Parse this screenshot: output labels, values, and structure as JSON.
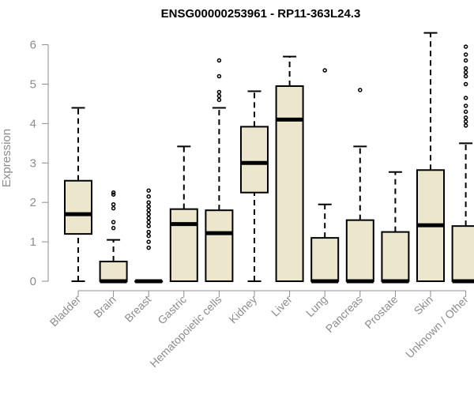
{
  "chart_data": {
    "type": "boxplot",
    "title": "ENSG00000253961 - RP11-363L24.3",
    "xlabel": "",
    "ylabel": "Expression",
    "ylim": [
      0,
      6.3
    ],
    "yticks": [
      0,
      1,
      2,
      3,
      4,
      5,
      6
    ],
    "box_color": "#ece6cc",
    "categories": [
      "Bladder",
      "Brain",
      "Breast",
      "Gastric",
      "Hematopoietic cells",
      "Kidney",
      "Liver",
      "Lung",
      "Pancreas",
      "Prostate",
      "Skin",
      "Unknown / Other"
    ],
    "boxes": [
      {
        "min": 0,
        "q1": 1.2,
        "median": 1.7,
        "q3": 2.55,
        "max": 4.4,
        "outliers": []
      },
      {
        "min": 0,
        "q1": 0,
        "median": 0,
        "q3": 0.5,
        "max": 1.05,
        "outliers": [
          1.35,
          1.5,
          1.85,
          1.95,
          2.2,
          2.25
        ]
      },
      {
        "min": 0,
        "q1": 0,
        "median": 0,
        "q3": 0,
        "max": 0,
        "outliers": [
          0.85,
          1.0,
          1.15,
          1.25,
          1.4,
          1.5,
          1.6,
          1.7,
          1.8,
          1.9,
          2.0,
          2.15,
          2.3
        ]
      },
      {
        "min": 0,
        "q1": 0,
        "median": 1.45,
        "q3": 1.83,
        "max": 3.42,
        "outliers": []
      },
      {
        "min": 0,
        "q1": 0,
        "median": 1.22,
        "q3": 1.8,
        "max": 4.4,
        "outliers": [
          4.6,
          4.7,
          4.8,
          5.2,
          5.6
        ]
      },
      {
        "min": 0,
        "q1": 2.25,
        "median": 3.0,
        "q3": 3.92,
        "max": 4.82,
        "outliers": []
      },
      {
        "min": 0,
        "q1": 0,
        "median": 4.1,
        "q3": 4.95,
        "max": 5.7,
        "outliers": []
      },
      {
        "min": 0,
        "q1": 0,
        "median": 0,
        "q3": 1.1,
        "max": 1.95,
        "outliers": [
          5.35
        ]
      },
      {
        "min": 0,
        "q1": 0,
        "median": 0,
        "q3": 1.55,
        "max": 3.42,
        "outliers": [
          4.85
        ]
      },
      {
        "min": 0,
        "q1": 0,
        "median": 0,
        "q3": 1.25,
        "max": 2.77,
        "outliers": []
      },
      {
        "min": 0,
        "q1": 0,
        "median": 1.42,
        "q3": 2.82,
        "max": 6.3,
        "outliers": []
      },
      {
        "min": 0,
        "q1": 0,
        "median": 0,
        "q3": 1.4,
        "max": 3.5,
        "outliers": [
          3.95,
          4.05,
          4.15,
          4.3,
          4.45,
          4.65,
          5.0,
          5.2,
          5.3,
          5.4,
          5.6,
          5.75,
          5.95
        ]
      }
    ]
  }
}
